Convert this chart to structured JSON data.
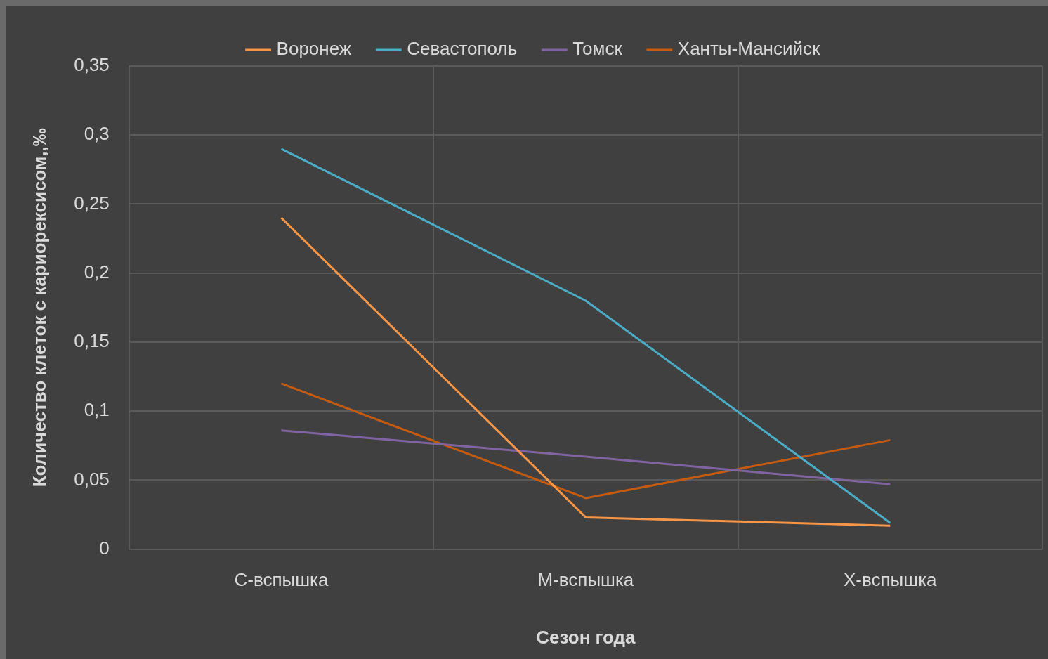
{
  "chart_data": {
    "type": "line",
    "xlabel": "Сезон года",
    "ylabel": "Количество клеток с кариорексисом,,‰",
    "categories": [
      "С-вспышка",
      "М-вспышка",
      "Х-вспышка"
    ],
    "series": [
      {
        "name": "Воронеж",
        "color": "#f79646",
        "values": [
          0.24,
          0.023,
          0.017
        ]
      },
      {
        "name": "Севастополь",
        "color": "#4bacc6",
        "values": [
          0.29,
          0.18,
          0.019
        ]
      },
      {
        "name": "Томск",
        "color": "#8064a2",
        "values": [
          0.086,
          0.067,
          0.047
        ]
      },
      {
        "name": "Ханты-Мансийск",
        "color": "#c55a11",
        "values": [
          0.12,
          0.037,
          0.079
        ]
      }
    ],
    "ylim": [
      0,
      0.35
    ],
    "yticks": [
      0,
      {
        "value": 0.05,
        "label": "0,05"
      },
      {
        "value": 0.1,
        "label": "0,1"
      },
      {
        "value": 0.15,
        "label": "0,15"
      },
      {
        "value": 0.2,
        "label": "0,2"
      },
      {
        "value": 0.25,
        "label": "0,25"
      },
      {
        "value": 0.3,
        "label": "0,3"
      },
      {
        "value": 0.35,
        "label": "0,35"
      }
    ],
    "grid": true,
    "legend": "top",
    "marker": "none",
    "line_style": "solid"
  }
}
